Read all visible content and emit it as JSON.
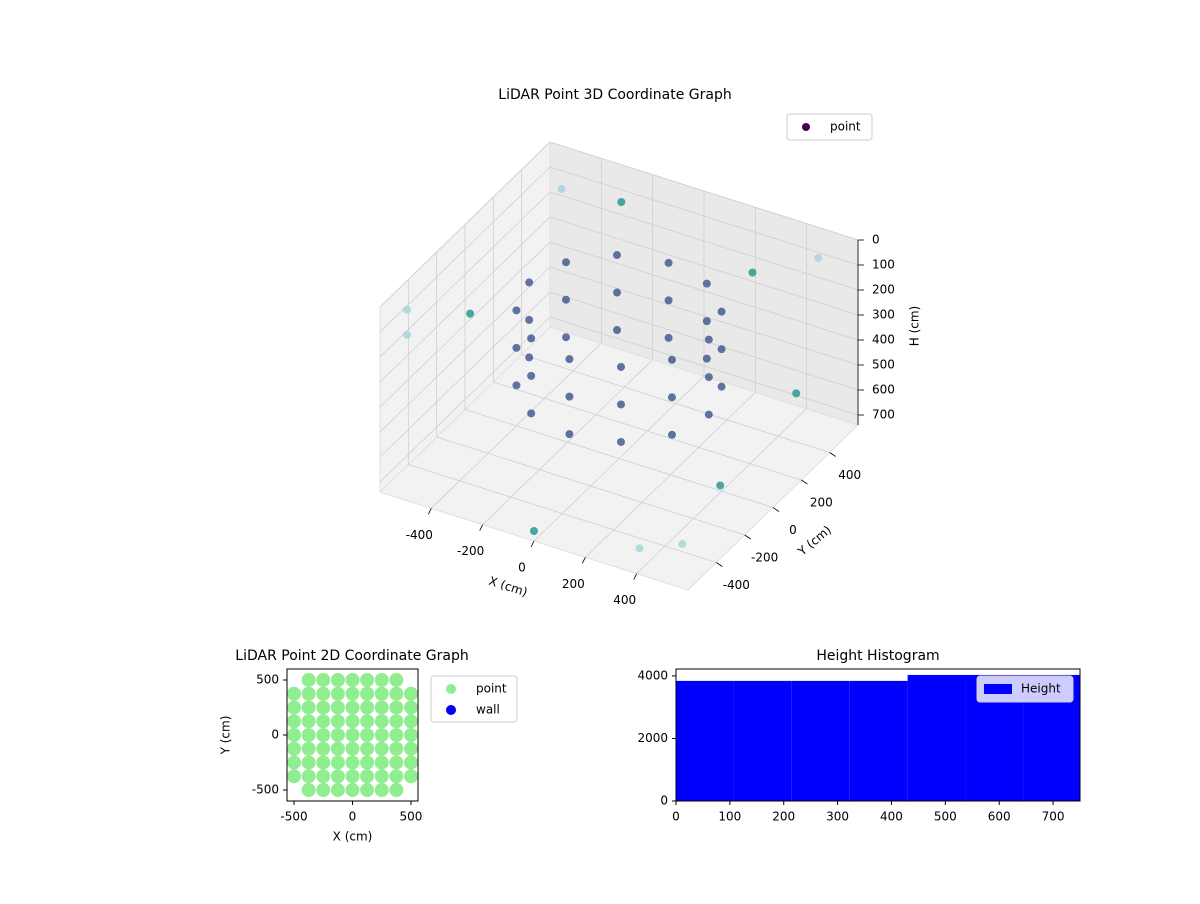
{
  "chart_data": [
    {
      "type": "scatter3d",
      "title": "LiDAR Point 3D Coordinate Graph",
      "xlabel": "X (cm)",
      "ylabel": "Y (cm)",
      "zlabel": "H (cm)",
      "xlim": [
        -600,
        600
      ],
      "ylim": [
        -600,
        600
      ],
      "zlim": [
        0,
        740
      ],
      "z_inverted": true,
      "xticks": [
        -400,
        -200,
        0,
        200,
        400
      ],
      "yticks": [
        -400,
        -200,
        0,
        200,
        400
      ],
      "zticks": [
        0,
        100,
        200,
        300,
        400,
        500,
        600,
        700
      ],
      "grid": true,
      "legend": "upper right",
      "colormap": [
        "#440154",
        "#443a83",
        "#3b528b",
        "#2c728e",
        "#21918c",
        "#a0d5d8"
      ],
      "series": [
        {
          "name": "point",
          "color": "#440154",
          "x": [
            350,
            303,
            175,
            0,
            -175,
            -303,
            -350,
            -303,
            -175,
            0,
            175,
            303,
            350,
            303,
            175,
            0,
            -175,
            -303,
            -350,
            -303,
            -175,
            0,
            175,
            303,
            350,
            303,
            175,
            0,
            -175,
            -303,
            -350,
            -303,
            -175,
            0,
            175,
            303,
            -550,
            -550,
            -500,
            500,
            550,
            0,
            400,
            -580,
            580,
            200,
            -300,
            560
          ],
          "y": [
            0,
            175,
            303,
            350,
            303,
            175,
            0,
            -175,
            -303,
            -350,
            -303,
            -175,
            0,
            175,
            303,
            350,
            303,
            175,
            0,
            -175,
            -303,
            -350,
            -303,
            -175,
            0,
            175,
            303,
            350,
            303,
            175,
            0,
            -175,
            -303,
            -350,
            -303,
            -175,
            -500,
            -500,
            500,
            500,
            -550,
            -600,
            -580,
            0,
            200,
            580,
            560,
            -300
          ],
          "h": [
            150,
            150,
            150,
            150,
            150,
            150,
            150,
            150,
            150,
            150,
            150,
            150,
            300,
            300,
            300,
            300,
            300,
            300,
            300,
            300,
            300,
            300,
            300,
            300,
            450,
            450,
            450,
            450,
            450,
            450,
            450,
            450,
            450,
            450,
            450,
            450,
            50,
            150,
            100,
            50,
            600,
            700,
            650,
            350,
            400,
            250,
            120,
            500
          ]
        }
      ]
    },
    {
      "type": "scatter",
      "title": "LiDAR Point 2D Coordinate Graph",
      "xlabel": "X (cm)",
      "ylabel": "Y (cm)",
      "xlim": [
        -560,
        560
      ],
      "ylim": [
        -600,
        600
      ],
      "xticks": [
        -500,
        0,
        500
      ],
      "yticks": [
        -500,
        0,
        500
      ],
      "legend": "outside right",
      "series": [
        {
          "name": "point",
          "color": "#90ee90",
          "x": [
            -375,
            -250,
            -125,
            0,
            125,
            250,
            375,
            -500,
            -375,
            -250,
            -125,
            0,
            125,
            250,
            375,
            500,
            -500,
            -375,
            -250,
            -125,
            0,
            125,
            250,
            375,
            500,
            -500,
            -375,
            -250,
            -125,
            0,
            125,
            250,
            375,
            500,
            -500,
            -375,
            -250,
            -125,
            0,
            125,
            250,
            375,
            500,
            -500,
            -375,
            -250,
            -125,
            0,
            125,
            250,
            375,
            500,
            -500,
            -375,
            -250,
            -125,
            0,
            125,
            250,
            375,
            500,
            -500,
            -375,
            -250,
            -125,
            0,
            125,
            250,
            375,
            500,
            -375,
            -250,
            -125,
            0,
            125,
            250,
            375
          ],
          "y": [
            500,
            500,
            500,
            500,
            500,
            500,
            500,
            375,
            375,
            375,
            375,
            375,
            375,
            375,
            375,
            375,
            250,
            250,
            250,
            250,
            250,
            250,
            250,
            250,
            250,
            125,
            125,
            125,
            125,
            125,
            125,
            125,
            125,
            125,
            0,
            0,
            0,
            0,
            0,
            0,
            0,
            0,
            0,
            -125,
            -125,
            -125,
            -125,
            -125,
            -125,
            -125,
            -125,
            -125,
            -250,
            -250,
            -250,
            -250,
            -250,
            -250,
            -250,
            -250,
            -250,
            -375,
            -375,
            -375,
            -375,
            -375,
            -375,
            -375,
            -375,
            -375,
            -500,
            -500,
            -500,
            -500,
            -500,
            -500,
            -500
          ]
        },
        {
          "name": "wall",
          "color": "#0000ff",
          "x": [],
          "y": []
        }
      ]
    },
    {
      "type": "histogram",
      "title": "Height Histogram",
      "name": "Height",
      "color": "#0000ff",
      "legend": "upper right",
      "bins": [
        0,
        107.5,
        215,
        322.5,
        430,
        537.5,
        645,
        750
      ],
      "counts": [
        3840,
        3840,
        3840,
        3840,
        4030,
        4030,
        4030
      ],
      "xlim": [
        0,
        750
      ],
      "ylim": [
        0,
        4220
      ],
      "xticks": [
        0,
        100,
        200,
        300,
        400,
        500,
        600,
        700
      ],
      "yticks": [
        0,
        2000,
        4000
      ]
    }
  ]
}
